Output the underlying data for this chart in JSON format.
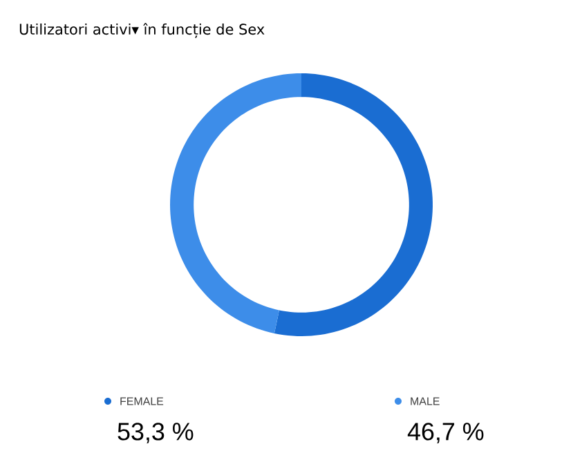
{
  "chart_data": {
    "type": "donut",
    "title": "Utilizatori activi▾ în funcție de Sex",
    "categories": [
      "FEMALE",
      "MALE"
    ],
    "values": [
      53.3,
      46.7
    ],
    "value_labels": [
      "53,3 %",
      "46,7 %"
    ],
    "colors": [
      "#1a6dd2",
      "#3d8de9"
    ],
    "legend": "bottom"
  }
}
